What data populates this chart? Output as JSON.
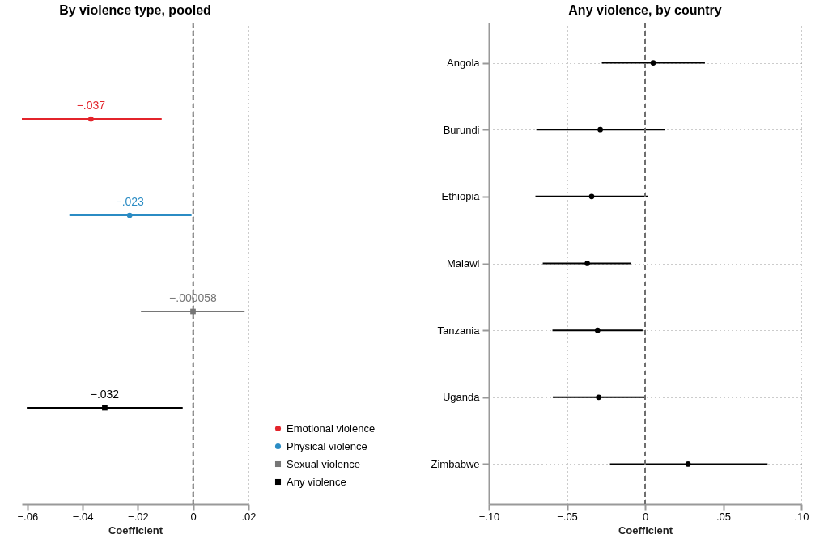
{
  "chart_data": [
    {
      "type": "scatter",
      "orientation": "horizontal",
      "title": "By violence type, pooled",
      "xlabel": "Coefficient",
      "categories": [
        null,
        null,
        null,
        null
      ],
      "xlim": [
        -0.062,
        0.02
      ],
      "xticks": [
        {
          "value": -0.06,
          "label": "−.06"
        },
        {
          "value": -0.04,
          "label": "−.04"
        },
        {
          "value": -0.02,
          "label": "−.02"
        },
        0,
        {
          "value": 0.02,
          "label": ".02"
        }
      ],
      "grid": "x",
      "legend": "bottom right",
      "tick_labels": "x",
      "ref_lines": [
        {
          "axis": "x",
          "value": 0,
          "color": "#6e6e6e",
          "line_style": "dashed"
        }
      ],
      "series": [
        {
          "name": "Emotional violence",
          "color": "#e3242b",
          "marker": "circle",
          "values": [
            -0.037,
            null,
            null,
            null
          ],
          "errors": [
            [
              -0.062,
              -0.0114
            ],
            null,
            null,
            null
          ],
          "value_labels": [
            "−.037",
            null,
            null,
            null
          ]
        },
        {
          "name": "Physical violence",
          "color": "#2b8cc4",
          "marker": "circle",
          "values": [
            null,
            -0.023,
            null,
            null
          ],
          "errors": [
            null,
            [
              -0.0448,
              -0.0006
            ],
            null,
            null
          ],
          "value_labels": [
            null,
            "−.023",
            null,
            null
          ]
        },
        {
          "name": "Sexual violence",
          "color": "#767676",
          "marker": "square",
          "values": [
            null,
            null,
            -5.8e-05,
            null
          ],
          "errors": [
            null,
            null,
            [
              -0.0189,
              0.0186
            ],
            null
          ],
          "value_labels": [
            null,
            null,
            "−.000058",
            null
          ]
        },
        {
          "name": "Any violence",
          "color": "#000000",
          "marker": "square",
          "values": [
            null,
            null,
            null,
            -0.032
          ],
          "errors": [
            null,
            null,
            null,
            [
              -0.0602,
              -0.0038
            ]
          ],
          "value_labels": [
            null,
            null,
            null,
            "−.032"
          ]
        }
      ]
    },
    {
      "type": "scatter",
      "orientation": "horizontal",
      "title": "Any violence, by country",
      "xlabel": "Coefficient",
      "categories": [
        "Angola",
        "Burundi",
        "Ethiopia",
        "Malawi",
        "Tanzania",
        "Uganda",
        "Zimbabwe"
      ],
      "xlim": [
        -0.1,
        0.1
      ],
      "xticks": [
        {
          "value": -0.1,
          "label": "−.10"
        },
        {
          "value": -0.05,
          "label": "−.05"
        },
        0,
        {
          "value": 0.05,
          "label": ".05"
        },
        {
          "value": 0.1,
          "label": ".10"
        }
      ],
      "grid": true,
      "ref_lines": [
        {
          "axis": "x",
          "value": 0,
          "color": "#6e6e6e",
          "line_style": "dashed"
        }
      ],
      "series": [
        {
          "color": "#000000",
          "marker": "circle",
          "values": [
            0.0052,
            -0.0287,
            -0.0342,
            -0.037,
            -0.0304,
            -0.0297,
            0.0275
          ],
          "errors": [
            [
              -0.0277,
              0.0383
            ],
            [
              -0.0696,
              0.0126
            ],
            [
              -0.0702,
              0.0016
            ],
            [
              -0.0655,
              -0.0088
            ],
            [
              -0.0593,
              -0.0016
            ],
            [
              -0.0591,
              0
            ],
            [
              -0.0225,
              0.0784
            ]
          ]
        }
      ]
    }
  ]
}
